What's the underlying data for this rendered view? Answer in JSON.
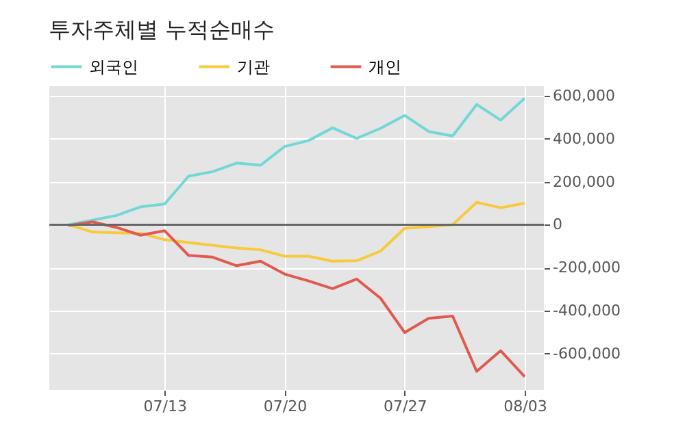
{
  "chart_data": {
    "type": "line",
    "title": "투자주체별 누적순매수",
    "categories": [
      null,
      null,
      null,
      null,
      "07/13",
      null,
      null,
      null,
      null,
      "07/20",
      null,
      null,
      null,
      null,
      "07/27",
      null,
      null,
      null,
      null,
      "08/03"
    ],
    "series": [
      {
        "name": "외국인",
        "color": "#72d8d6",
        "values": [
          0,
          21000,
          43000,
          83000,
          96000,
          226000,
          247000,
          287000,
          277000,
          364000,
          392000,
          451000,
          402000,
          449000,
          509000,
          434000,
          413000,
          560000,
          487000,
          589000
        ]
      },
      {
        "name": "기관",
        "color": "#f7ca3e",
        "values": [
          0,
          -34000,
          -38000,
          -40000,
          -70000,
          -83000,
          -96000,
          -109000,
          -117000,
          -147000,
          -147000,
          -170000,
          -168000,
          -123000,
          -17000,
          -9000,
          0,
          104000,
          79000,
          100000
        ]
      },
      {
        "name": "개인",
        "color": "#e05a50",
        "values": [
          -4000,
          13000,
          -13000,
          -49000,
          -28000,
          -143000,
          -151000,
          -191000,
          -170000,
          -230000,
          -262000,
          -298000,
          -253000,
          -343000,
          -502000,
          -436000,
          -426000,
          -683000,
          -587000,
          -708000
        ]
      }
    ],
    "ylim": [
      -770000,
      645000
    ],
    "yticks": [
      {
        "value": -600000,
        "label": "-600,000"
      },
      {
        "value": -400000,
        "label": "-400,000"
      },
      {
        "value": -200000,
        "label": "-200,000"
      },
      0,
      {
        "value": 200000,
        "label": "200,000"
      },
      {
        "value": 400000,
        "label": "400,000"
      },
      {
        "value": 600000,
        "label": "600,000"
      }
    ],
    "ref_lines": [
      {
        "axis": "y",
        "value": 0,
        "color": "#666666"
      }
    ],
    "grid": true,
    "legend": "top left",
    "marker": "none",
    "line_style": "solid"
  }
}
